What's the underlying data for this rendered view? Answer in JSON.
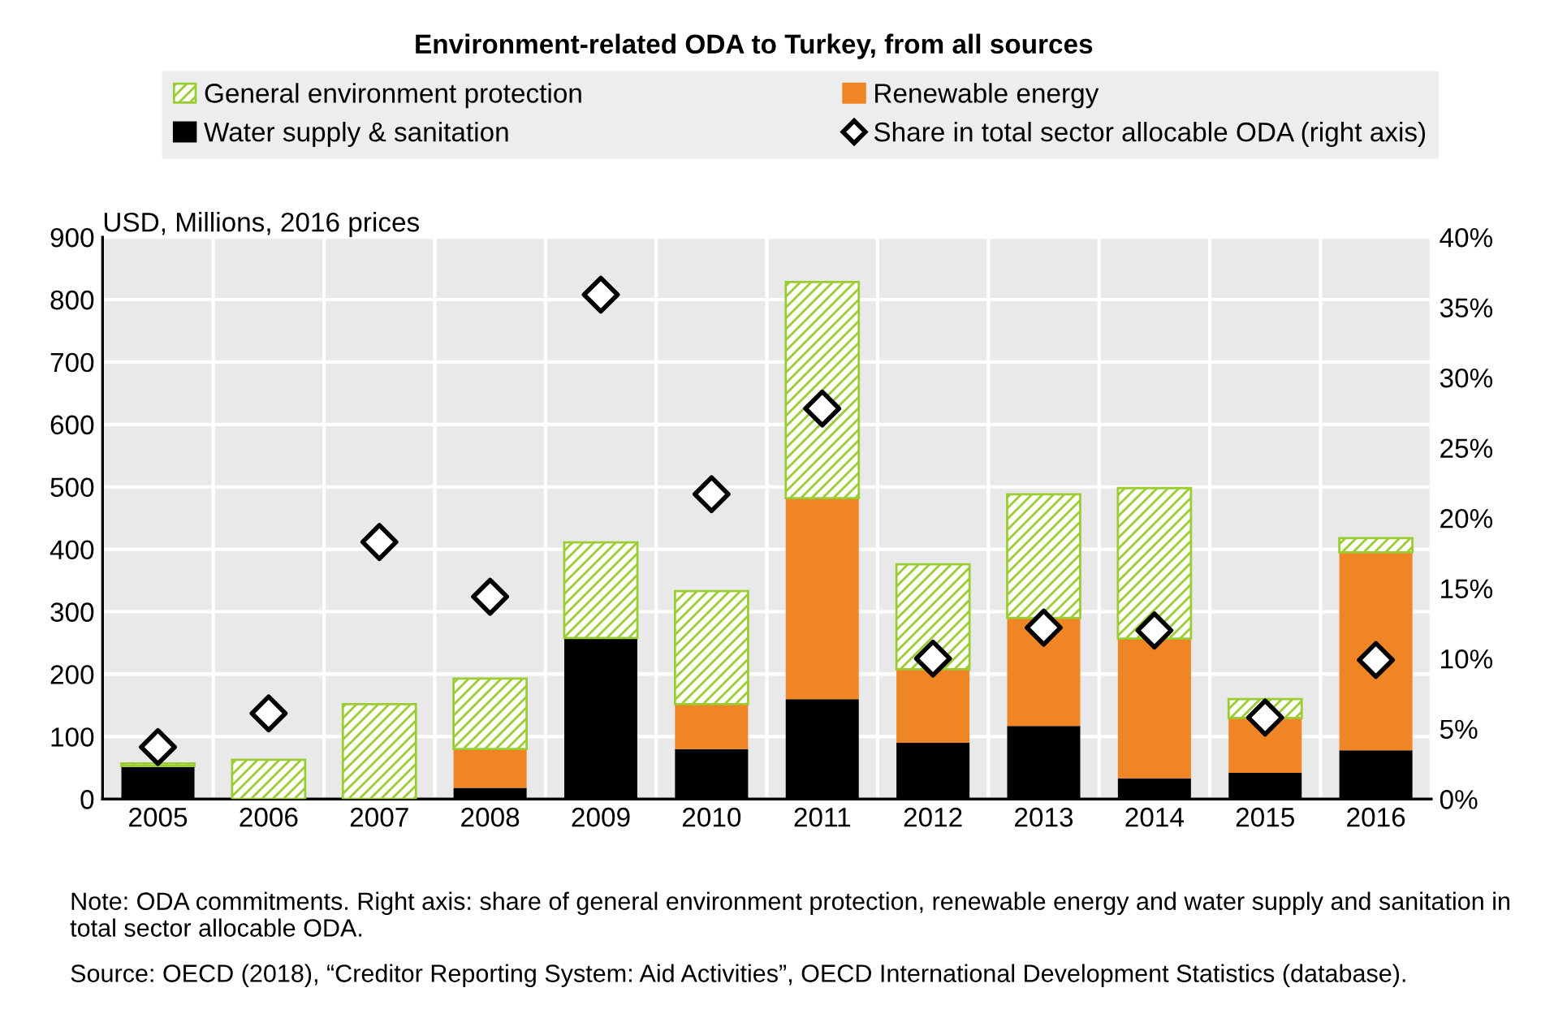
{
  "chart_data": {
    "type": "bar",
    "title": "Environment-related ODA to Turkey, from all sources",
    "ylabel": "USD, Millions, 2016 prices",
    "categories": [
      "2005",
      "2006",
      "2007",
      "2008",
      "2009",
      "2010",
      "2011",
      "2012",
      "2013",
      "2014",
      "2015",
      "2016"
    ],
    "stacked": true,
    "series": [
      {
        "name": "Water supply & sanitation",
        "color": "#000000",
        "values": [
          53,
          0,
          0,
          18,
          258,
          80,
          160,
          90,
          117,
          33,
          42,
          78
        ]
      },
      {
        "name": "Renewable energy",
        "color": "#f08526",
        "values": [
          0,
          0,
          0,
          62,
          0,
          72,
          322,
          118,
          173,
          224,
          88,
          317
        ]
      },
      {
        "name": "General environment protection",
        "color": "#9acd32",
        "values": [
          4,
          63,
          152,
          113,
          153,
          181,
          346,
          168,
          198,
          241,
          30,
          23
        ]
      },
      {
        "name": "Share in total sector allocable ODA (right axis)",
        "type": "scatter",
        "axis": "y2",
        "marker": "diamond",
        "color": "#000000",
        "values": [
          3.7,
          6.1,
          18.3,
          14.4,
          35.9,
          21.7,
          27.8,
          10.0,
          12.2,
          12.0,
          5.8,
          9.9
        ]
      }
    ],
    "ylim": [
      0,
      900
    ],
    "yticks": [
      0,
      100,
      200,
      300,
      400,
      500,
      600,
      700,
      800,
      900
    ],
    "y2lim": [
      0,
      40
    ],
    "y2ticks": [
      {
        "value": 0,
        "label": "0%"
      },
      {
        "value": 5,
        "label": "5%"
      },
      {
        "value": 10,
        "label": "10%"
      },
      {
        "value": 15,
        "label": "15%"
      },
      {
        "value": 20,
        "label": "20%"
      },
      {
        "value": 25,
        "label": "25%"
      },
      {
        "value": 30,
        "label": "30%"
      },
      {
        "value": 35,
        "label": "35%"
      },
      {
        "value": 40,
        "label": "40%"
      }
    ],
    "grid": true,
    "legend": "top",
    "annotations": [
      "Note: ODA commitments. Right axis: share of general environment protection, renewable energy and water supply and sanitation in total sector allocable ODA.",
      "Source: OECD (2018), “Creditor Reporting System: Aid Activities”, OECD International Development Statistics (database)."
    ]
  }
}
